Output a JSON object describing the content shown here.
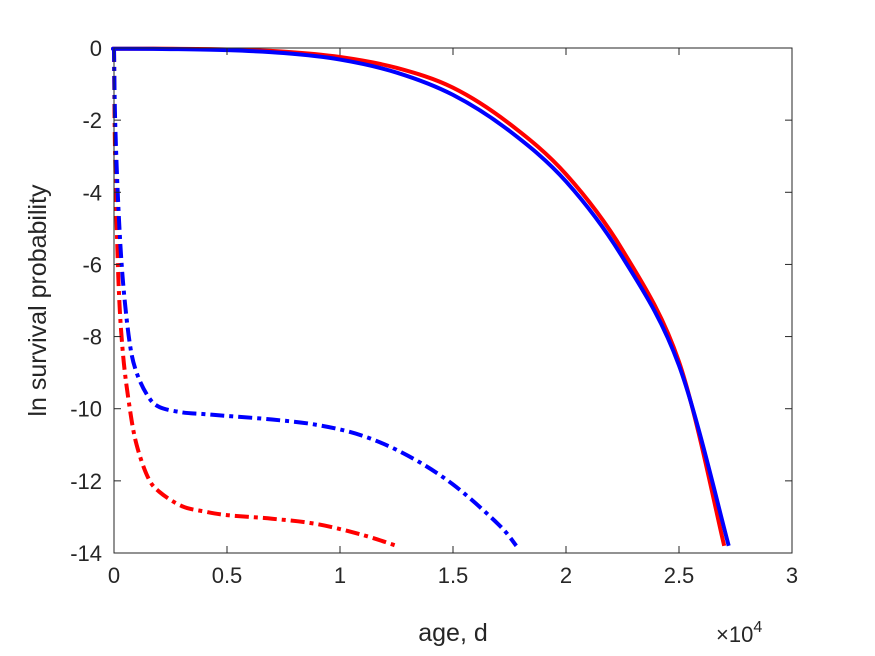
{
  "chart_data": {
    "type": "line",
    "xlabel": "age, d",
    "ylabel": "ln survival probability",
    "x_exponent_times": "×10",
    "x_exponent_power": "4",
    "xlim": [
      0,
      3
    ],
    "ylim": [
      -14,
      0
    ],
    "x_ticks": [
      0,
      0.5,
      1,
      1.5,
      2,
      2.5,
      3
    ],
    "x_tick_labels": [
      "0",
      "0.5",
      "1",
      "1.5",
      "2",
      "2.5",
      "3"
    ],
    "y_ticks": [
      0,
      -2,
      -4,
      -6,
      -8,
      -10,
      -12,
      -14
    ],
    "y_tick_labels": [
      "0",
      "-2",
      "-4",
      "-6",
      "-8",
      "-10",
      "-12",
      "-14"
    ],
    "grid": false,
    "series": [
      {
        "color": "#ff0000",
        "style": "solid",
        "x": [
          0,
          0.02,
          0.25,
          0.5,
          0.75,
          1.0,
          1.25,
          1.5,
          1.75,
          2.0,
          2.25,
          2.5,
          2.7
        ],
        "y": [
          -0.02,
          -0.02,
          -0.02,
          -0.04,
          -0.1,
          -0.25,
          -0.55,
          -1.1,
          -2.1,
          -3.5,
          -5.6,
          -8.7,
          -13.8
        ]
      },
      {
        "color": "#0000ff",
        "style": "solid",
        "x": [
          0,
          0.02,
          0.25,
          0.5,
          0.75,
          1.0,
          1.25,
          1.5,
          1.75,
          2.0,
          2.25,
          2.5,
          2.72
        ],
        "y": [
          -0.02,
          -0.02,
          -0.03,
          -0.06,
          -0.14,
          -0.32,
          -0.68,
          -1.3,
          -2.3,
          -3.7,
          -5.8,
          -8.8,
          -13.8
        ]
      },
      {
        "color": "#ff0000",
        "style": "dashdot",
        "x": [
          0,
          0.005,
          0.02,
          0.04,
          0.07,
          0.1,
          0.15,
          0.2,
          0.3,
          0.4,
          0.5,
          0.7,
          0.9,
          1.1,
          1.25
        ],
        "y": [
          0,
          -3,
          -6.5,
          -8.5,
          -10,
          -11,
          -11.9,
          -12.3,
          -12.7,
          -12.85,
          -12.95,
          -13.05,
          -13.2,
          -13.5,
          -13.8
        ]
      },
      {
        "color": "#0000ff",
        "style": "dashdot",
        "x": [
          0,
          0.005,
          0.02,
          0.04,
          0.07,
          0.1,
          0.15,
          0.2,
          0.3,
          0.4,
          0.5,
          0.7,
          0.9,
          1.1,
          1.3,
          1.5,
          1.7,
          1.78
        ],
        "y": [
          0,
          -2,
          -4.5,
          -6.5,
          -8.2,
          -9.0,
          -9.65,
          -9.95,
          -10.1,
          -10.15,
          -10.2,
          -10.3,
          -10.45,
          -10.75,
          -11.3,
          -12.1,
          -13.2,
          -13.8
        ]
      }
    ]
  }
}
